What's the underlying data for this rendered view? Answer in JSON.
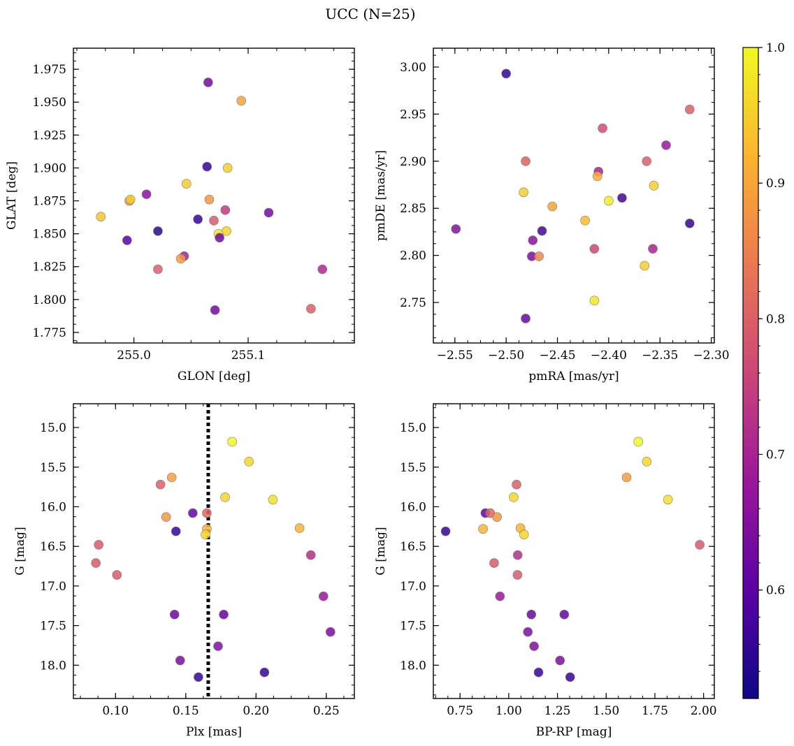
{
  "figure_title": "UCC (N=25)",
  "colorbar": {
    "range": [
      0.52,
      1.0
    ],
    "ticks": [
      0.6,
      0.7,
      0.8,
      0.9,
      1.0
    ],
    "tick_labels": [
      "0.6",
      "0.7",
      "0.8",
      "0.9",
      "1.0"
    ],
    "colormap": [
      "#0d0887",
      "#5b02a3",
      "#9a179b",
      "#cb4678",
      "#eb7852",
      "#fbb32f",
      "#f0f921"
    ]
  },
  "chart_data": [
    {
      "id": "glon-glat",
      "type": "scatter",
      "title": "",
      "xlabel": "GLON [deg]",
      "ylabel": "GLAT [deg]",
      "xlim": [
        254.947,
        255.193
      ],
      "ylim": [
        1.767,
        1.991
      ],
      "xticks": [
        255.0,
        255.1
      ],
      "xtick_labels": [
        "255.0",
        "255.1"
      ],
      "yticks": [
        1.775,
        1.8,
        1.825,
        1.85,
        1.875,
        1.9,
        1.925,
        1.95,
        1.975
      ],
      "ytick_labels": [
        "1.775",
        "1.800",
        "1.825",
        "1.850",
        "1.875",
        "1.900",
        "1.925",
        "1.950",
        "1.975"
      ],
      "points": [
        {
          "x": 255.065,
          "y": 1.965,
          "c": 0.63
        },
        {
          "x": 255.094,
          "y": 1.951,
          "c": 0.9
        },
        {
          "x": 255.064,
          "y": 1.901,
          "c": 0.56
        },
        {
          "x": 255.082,
          "y": 1.9,
          "c": 0.95
        },
        {
          "x": 255.046,
          "y": 1.888,
          "c": 0.95
        },
        {
          "x": 255.011,
          "y": 1.88,
          "c": 0.66
        },
        {
          "x": 254.996,
          "y": 1.875,
          "c": 0.87
        },
        {
          "x": 254.997,
          "y": 1.876,
          "c": 0.95
        },
        {
          "x": 255.066,
          "y": 1.876,
          "c": 0.88
        },
        {
          "x": 254.971,
          "y": 1.863,
          "c": 0.94
        },
        {
          "x": 255.08,
          "y": 1.868,
          "c": 0.74
        },
        {
          "x": 255.118,
          "y": 1.866,
          "c": 0.63
        },
        {
          "x": 255.056,
          "y": 1.861,
          "c": 0.56
        },
        {
          "x": 255.07,
          "y": 1.86,
          "c": 0.79
        },
        {
          "x": 255.081,
          "y": 1.852,
          "c": 0.96
        },
        {
          "x": 255.074,
          "y": 1.85,
          "c": 0.98
        },
        {
          "x": 255.075,
          "y": 1.847,
          "c": 0.63
        },
        {
          "x": 255.021,
          "y": 1.852,
          "c": 0.55
        },
        {
          "x": 254.994,
          "y": 1.845,
          "c": 0.6
        },
        {
          "x": 255.044,
          "y": 1.833,
          "c": 0.7
        },
        {
          "x": 255.041,
          "y": 1.831,
          "c": 0.89
        },
        {
          "x": 255.021,
          "y": 1.823,
          "c": 0.8
        },
        {
          "x": 255.165,
          "y": 1.823,
          "c": 0.71
        },
        {
          "x": 255.071,
          "y": 1.792,
          "c": 0.63
        },
        {
          "x": 255.155,
          "y": 1.793,
          "c": 0.8
        }
      ]
    },
    {
      "id": "pmra-pmde",
      "type": "scatter",
      "title": "",
      "xlabel": "pmRA [mas/yr]",
      "ylabel": "pmDE [mas/yr]",
      "xlim": [
        -2.571,
        -2.297
      ],
      "ylim": [
        2.707,
        3.02
      ],
      "xticks": [
        -2.55,
        -2.5,
        -2.45,
        -2.4,
        -2.35,
        -2.3
      ],
      "xtick_labels": [
        "−2.55",
        "−2.50",
        "−2.45",
        "−2.40",
        "−2.35",
        "−2.30"
      ],
      "yticks": [
        2.75,
        2.8,
        2.85,
        2.9,
        2.95,
        3.0
      ],
      "ytick_labels": [
        "2.75",
        "2.80",
        "2.85",
        "2.90",
        "2.95",
        "3.00"
      ],
      "points": [
        {
          "x": -2.5,
          "y": 2.993,
          "c": 0.56
        },
        {
          "x": -2.321,
          "y": 2.955,
          "c": 0.8
        },
        {
          "x": -2.406,
          "y": 2.935,
          "c": 0.77
        },
        {
          "x": -2.344,
          "y": 2.917,
          "c": 0.68
        },
        {
          "x": -2.481,
          "y": 2.9,
          "c": 0.8
        },
        {
          "x": -2.363,
          "y": 2.9,
          "c": 0.8
        },
        {
          "x": -2.41,
          "y": 2.889,
          "c": 0.7
        },
        {
          "x": -2.411,
          "y": 2.884,
          "c": 0.91
        },
        {
          "x": -2.356,
          "y": 2.874,
          "c": 0.95
        },
        {
          "x": -2.483,
          "y": 2.867,
          "c": 0.95
        },
        {
          "x": -2.387,
          "y": 2.861,
          "c": 0.58
        },
        {
          "x": -2.4,
          "y": 2.858,
          "c": 0.99
        },
        {
          "x": -2.455,
          "y": 2.852,
          "c": 0.9
        },
        {
          "x": -2.423,
          "y": 2.837,
          "c": 0.93
        },
        {
          "x": -2.321,
          "y": 2.834,
          "c": 0.56
        },
        {
          "x": -2.549,
          "y": 2.828,
          "c": 0.65
        },
        {
          "x": -2.465,
          "y": 2.826,
          "c": 0.58
        },
        {
          "x": -2.474,
          "y": 2.816,
          "c": 0.66
        },
        {
          "x": -2.414,
          "y": 2.807,
          "c": 0.76
        },
        {
          "x": -2.357,
          "y": 2.807,
          "c": 0.7
        },
        {
          "x": -2.475,
          "y": 2.799,
          "c": 0.64
        },
        {
          "x": -2.468,
          "y": 2.799,
          "c": 0.86
        },
        {
          "x": -2.365,
          "y": 2.789,
          "c": 0.95
        },
        {
          "x": -2.414,
          "y": 2.752,
          "c": 0.98
        },
        {
          "x": -2.481,
          "y": 2.733,
          "c": 0.62
        }
      ]
    },
    {
      "id": "plx-g",
      "type": "scatter",
      "title": "",
      "xlabel": "Plx [mas]",
      "ylabel": "G [mag]",
      "xlim": [
        0.07,
        0.27
      ],
      "ylim": [
        18.42,
        14.7
      ],
      "y_inverted": true,
      "vline_x": 0.166,
      "xticks": [
        0.1,
        0.15,
        0.2,
        0.25
      ],
      "xtick_labels": [
        "0.10",
        "0.15",
        "0.20",
        "0.25"
      ],
      "yticks": [
        15.0,
        15.5,
        16.0,
        16.5,
        17.0,
        17.5,
        18.0
      ],
      "ytick_labels": [
        "15.0",
        "15.5",
        "16.0",
        "16.5",
        "17.0",
        "17.5",
        "18.0"
      ],
      "points": [
        {
          "x": 0.183,
          "y": 15.18,
          "c": 1.0
        },
        {
          "x": 0.195,
          "y": 15.43,
          "c": 0.96
        },
        {
          "x": 0.14,
          "y": 15.63,
          "c": 0.89
        },
        {
          "x": 0.132,
          "y": 15.72,
          "c": 0.8
        },
        {
          "x": 0.178,
          "y": 15.88,
          "c": 0.96
        },
        {
          "x": 0.212,
          "y": 15.91,
          "c": 0.97
        },
        {
          "x": 0.155,
          "y": 16.08,
          "c": 0.61
        },
        {
          "x": 0.165,
          "y": 16.08,
          "c": 0.81
        },
        {
          "x": 0.136,
          "y": 16.13,
          "c": 0.88
        },
        {
          "x": 0.231,
          "y": 16.27,
          "c": 0.92
        },
        {
          "x": 0.165,
          "y": 16.28,
          "c": 0.92
        },
        {
          "x": 0.143,
          "y": 16.31,
          "c": 0.56
        },
        {
          "x": 0.164,
          "y": 16.35,
          "c": 0.96
        },
        {
          "x": 0.088,
          "y": 16.48,
          "c": 0.79
        },
        {
          "x": 0.239,
          "y": 16.61,
          "c": 0.72
        },
        {
          "x": 0.086,
          "y": 16.71,
          "c": 0.79
        },
        {
          "x": 0.101,
          "y": 16.86,
          "c": 0.79
        },
        {
          "x": 0.248,
          "y": 17.13,
          "c": 0.68
        },
        {
          "x": 0.142,
          "y": 17.36,
          "c": 0.62
        },
        {
          "x": 0.177,
          "y": 17.36,
          "c": 0.61
        },
        {
          "x": 0.253,
          "y": 17.58,
          "c": 0.64
        },
        {
          "x": 0.173,
          "y": 17.76,
          "c": 0.65
        },
        {
          "x": 0.146,
          "y": 17.94,
          "c": 0.64
        },
        {
          "x": 0.206,
          "y": 18.09,
          "c": 0.56
        },
        {
          "x": 0.159,
          "y": 18.15,
          "c": 0.56
        }
      ]
    },
    {
      "id": "bprp-g",
      "type": "scatter",
      "title": "",
      "xlabel": "BP-RP [mag]",
      "ylabel": "G [mag]",
      "xlim": [
        0.613,
        2.055
      ],
      "ylim": [
        18.42,
        14.7
      ],
      "y_inverted": true,
      "xticks": [
        0.75,
        1.0,
        1.25,
        1.5,
        1.75,
        2.0
      ],
      "xtick_labels": [
        "0.75",
        "1.00",
        "1.25",
        "1.50",
        "1.75",
        "2.00"
      ],
      "yticks": [
        15.0,
        15.5,
        16.0,
        16.5,
        17.0,
        17.5,
        18.0
      ],
      "ytick_labels": [
        "15.0",
        "15.5",
        "16.0",
        "16.5",
        "17.0",
        "17.5",
        "18.0"
      ],
      "points": [
        {
          "x": 1.665,
          "y": 15.18,
          "c": 1.0
        },
        {
          "x": 1.708,
          "y": 15.43,
          "c": 0.96
        },
        {
          "x": 1.605,
          "y": 15.63,
          "c": 0.89
        },
        {
          "x": 1.04,
          "y": 15.72,
          "c": 0.8
        },
        {
          "x": 1.025,
          "y": 15.88,
          "c": 0.96
        },
        {
          "x": 1.817,
          "y": 15.91,
          "c": 0.97
        },
        {
          "x": 0.88,
          "y": 16.08,
          "c": 0.61
        },
        {
          "x": 0.905,
          "y": 16.08,
          "c": 0.81
        },
        {
          "x": 0.94,
          "y": 16.13,
          "c": 0.88
        },
        {
          "x": 1.06,
          "y": 16.27,
          "c": 0.92
        },
        {
          "x": 0.868,
          "y": 16.28,
          "c": 0.92
        },
        {
          "x": 0.676,
          "y": 16.31,
          "c": 0.56
        },
        {
          "x": 1.078,
          "y": 16.35,
          "c": 0.96
        },
        {
          "x": 1.98,
          "y": 16.48,
          "c": 0.79
        },
        {
          "x": 1.046,
          "y": 16.61,
          "c": 0.72
        },
        {
          "x": 0.925,
          "y": 16.71,
          "c": 0.79
        },
        {
          "x": 1.045,
          "y": 16.86,
          "c": 0.79
        },
        {
          "x": 0.955,
          "y": 17.13,
          "c": 0.68
        },
        {
          "x": 1.116,
          "y": 17.36,
          "c": 0.62
        },
        {
          "x": 1.285,
          "y": 17.36,
          "c": 0.61
        },
        {
          "x": 1.098,
          "y": 17.58,
          "c": 0.64
        },
        {
          "x": 1.13,
          "y": 17.76,
          "c": 0.65
        },
        {
          "x": 1.263,
          "y": 17.94,
          "c": 0.64
        },
        {
          "x": 1.153,
          "y": 18.09,
          "c": 0.56
        },
        {
          "x": 1.315,
          "y": 18.15,
          "c": 0.56
        }
      ]
    }
  ]
}
